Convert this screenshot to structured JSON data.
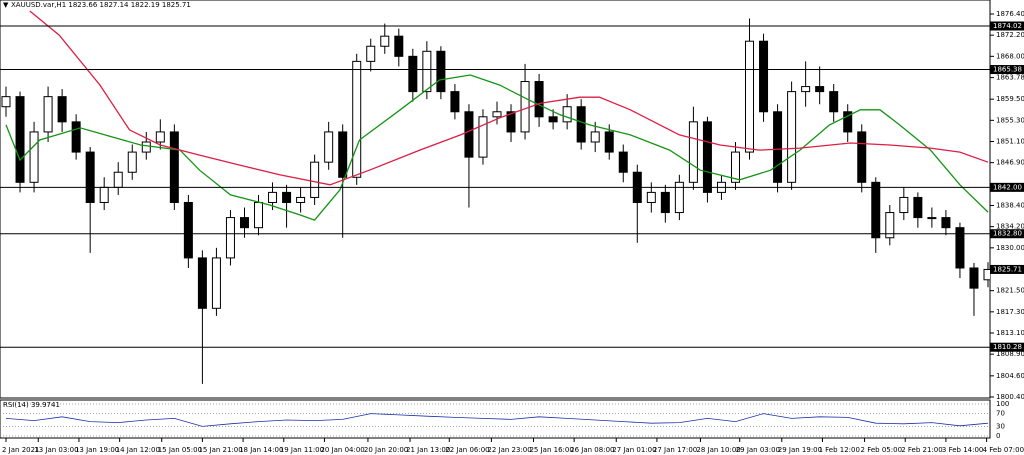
{
  "chart_data": {
    "type": "candlestick",
    "title": "XAUUSD.var,H1 1823.66 1827.14 1822.19 1825.71",
    "open": [
      1858,
      1860,
      1843,
      1853,
      1860,
      1855,
      1849,
      1839,
      1842,
      1845,
      1849,
      1851,
      1853,
      1839,
      1828,
      1818,
      1828,
      1836,
      1834,
      1839,
      1841,
      1839,
      1840,
      1847,
      1853,
      1844,
      1867,
      1870,
      1872,
      1868,
      1861,
      1869,
      1861,
      1857,
      1848,
      1856,
      1857,
      1853,
      1863,
      1856,
      1855,
      1858,
      1851,
      1853,
      1849,
      1845,
      1839,
      1841,
      1837,
      1843,
      1855,
      1841,
      1843,
      1849,
      1871,
      1857,
      1843,
      1861,
      1862,
      1861,
      1857,
      1853,
      1843,
      1832,
      1837,
      1840,
      1836,
      1836,
      1834,
      1826,
      1823.66
    ],
    "high": [
      1862,
      1861,
      1855,
      1862,
      1861.5,
      1856.5,
      1850,
      1844,
      1847,
      1850.5,
      1853,
      1855.5,
      1854.5,
      1840.5,
      1829.5,
      1830,
      1837.5,
      1838,
      1840.5,
      1843,
      1842.5,
      1842,
      1848.5,
      1855,
      1854.5,
      1868.5,
      1871.5,
      1874.5,
      1873.5,
      1869.5,
      1871,
      1870,
      1862.5,
      1858.5,
      1857.5,
      1859,
      1858.5,
      1866.5,
      1864.5,
      1857.5,
      1860.5,
      1859.5,
      1855,
      1854.5,
      1850.5,
      1846.5,
      1843,
      1842.5,
      1844.5,
      1858,
      1856,
      1844.5,
      1851,
      1875.5,
      1872.5,
      1858.5,
      1863,
      1867,
      1866,
      1862.5,
      1858.5,
      1854.5,
      1844,
      1838.5,
      1842,
      1841,
      1838,
      1837.5,
      1835,
      1827,
      1827.14
    ],
    "low": [
      1856,
      1841,
      1841,
      1851,
      1853,
      1847.5,
      1829,
      1837.5,
      1840.5,
      1843.5,
      1847.5,
      1849.5,
      1837.5,
      1826,
      1803,
      1816.5,
      1826.5,
      1832,
      1832.5,
      1837.5,
      1834,
      1837,
      1838.5,
      1845.5,
      1832,
      1842.5,
      1865,
      1868.5,
      1866,
      1859,
      1859.5,
      1859.5,
      1855.5,
      1838,
      1846.5,
      1854.5,
      1851,
      1851.5,
      1854,
      1853.5,
      1853.5,
      1849.5,
      1849,
      1847.5,
      1843,
      1831,
      1837,
      1835,
      1835.5,
      1841.5,
      1839,
      1839.5,
      1841.5,
      1847.5,
      1855,
      1841,
      1841.5,
      1858,
      1858.5,
      1855,
      1851,
      1841,
      1829,
      1830.5,
      1835.5,
      1834,
      1834,
      1832.5,
      1824,
      1816.5,
      1822.19
    ],
    "close": [
      1860,
      1843,
      1853,
      1860,
      1855,
      1849,
      1839,
      1842,
      1845,
      1849,
      1851,
      1853,
      1839,
      1828,
      1818,
      1828,
      1836,
      1834,
      1839,
      1841,
      1839,
      1840,
      1847,
      1853,
      1844,
      1867,
      1870,
      1872,
      1868,
      1861,
      1869,
      1861,
      1857,
      1848,
      1856,
      1857,
      1853,
      1863,
      1856,
      1855,
      1858,
      1851,
      1853,
      1849,
      1845,
      1839,
      1841,
      1837,
      1843,
      1855,
      1841,
      1843,
      1849,
      1871,
      1857,
      1843,
      1861,
      1862,
      1861,
      1857,
      1853,
      1843,
      1832,
      1837,
      1840,
      1836,
      1836,
      1834,
      1826,
      1822,
      1825.71
    ],
    "xlim": [
      0,
      70
    ],
    "ylim": [
      1800.4,
      1876.4
    ],
    "yticks": [
      {
        "value": 1876.4,
        "label": "1876.40"
      },
      {
        "value": 1872.2,
        "label": "1872.20"
      },
      {
        "value": 1868,
        "label": "1868.00"
      },
      1863.78,
      {
        "value": 1859.5,
        "label": "1859.50"
      },
      {
        "value": 1855.3,
        "label": "1855.30"
      },
      {
        "value": 1851.1,
        "label": "1851.10"
      },
      {
        "value": 1846.9,
        "label": "1846.90"
      },
      {
        "value": 1838.4,
        "label": "1838.40"
      },
      {
        "value": 1834.2,
        "label": "1834.20"
      },
      {
        "value": 1830,
        "label": "1830.00"
      },
      {
        "value": 1821.5,
        "label": "1821.50"
      },
      {
        "value": 1817.3,
        "label": "1817.30"
      },
      {
        "value": 1813.1,
        "label": "1813.10"
      },
      {
        "value": 1808.9,
        "label": "1808.90"
      },
      {
        "value": 1804.6,
        "label": "1804.60"
      },
      {
        "value": 1800.4,
        "label": "1800.40"
      }
    ],
    "levels": [
      1874.02,
      1865.38,
      {
        "value": 1842,
        "label": "1842.00"
      },
      {
        "value": 1832.8,
        "label": "1832.80"
      },
      1810.28
    ],
    "xticks": [
      {
        "value": 0,
        "label": "2 Jan 2021"
      },
      {
        "value": 2.3,
        "label": "13 Jan 03:00"
      },
      {
        "value": 5.2,
        "label": "13 Jan 19:00"
      },
      {
        "value": 8.1,
        "label": "14 Jan 12:00"
      },
      {
        "value": 11.1,
        "label": "15 Jan 05:00"
      },
      {
        "value": 14,
        "label": "15 Jan 21:00"
      },
      {
        "value": 16.9,
        "label": "18 Jan 14:00"
      },
      {
        "value": 19.8,
        "label": "19 Jan 11:00"
      },
      {
        "value": 22.7,
        "label": "20 Jan 04:00"
      },
      {
        "value": 25.8,
        "label": "20 Jan 20:00"
      },
      {
        "value": 28.8,
        "label": "21 Jan 13:00"
      },
      {
        "value": 31.6,
        "label": "22 Jan 06:00"
      },
      {
        "value": 34.6,
        "label": "22 Jan 23:00"
      },
      {
        "value": 37.6,
        "label": "25 Jan 16:00"
      },
      {
        "value": 40.5,
        "label": "26 Jan 08:00"
      },
      {
        "value": 43.5,
        "label": "27 Jan 01:00"
      },
      {
        "value": 46.4,
        "label": "27 Jan 17:00"
      },
      {
        "value": 49.5,
        "label": "28 Jan 10:00"
      },
      {
        "value": 52.3,
        "label": "29 Jan 03:00"
      },
      {
        "value": 55.3,
        "label": "29 Jan 19:00"
      },
      {
        "value": 58.2,
        "label": "1 Feb 12:00"
      },
      {
        "value": 61.2,
        "label": "2 Feb 05:00"
      },
      {
        "value": 64.1,
        "label": "2 Feb 21:00"
      },
      {
        "value": 67,
        "label": "3 Feb 14:00"
      },
      {
        "value": 69.9,
        "label": "4 Feb 07:00"
      }
    ],
    "overlays": [
      {
        "color": "#149414",
        "x": [
          0,
          1,
          2.4,
          5.3,
          9.6,
          12.4,
          13.8,
          16,
          18.8,
          21,
          22,
          23.8,
          25.2,
          28.1,
          30.9,
          33.1,
          35.2,
          37.3,
          39.5,
          41.6,
          44.5,
          47.3,
          49.5,
          52.3,
          54.5,
          56.6,
          58.7,
          60.9,
          62.3,
          63.7,
          65.9,
          68,
          70
        ],
        "values": [
          1854.4,
          1847.4,
          1851.4,
          1853.8,
          1850.4,
          1849.4,
          1845.4,
          1840.5,
          1838.5,
          1836.5,
          1835.5,
          1841.5,
          1851.4,
          1857.4,
          1863.3,
          1864.3,
          1862.3,
          1859.3,
          1856.4,
          1854.4,
          1852.4,
          1849.4,
          1845.4,
          1843.5,
          1845.4,
          1849.4,
          1854.4,
          1857.4,
          1857.4,
          1854.4,
          1849.4,
          1842.5,
          1837.1
        ]
      },
      {
        "color": "#dc1e44",
        "x": [
          1.7,
          3.8,
          6.7,
          8.8,
          11,
          13.8,
          16.7,
          19.5,
          23.1,
          25.9,
          29.5,
          32.4,
          35.2,
          38.1,
          40.9,
          42.3,
          44.5,
          48,
          50.9,
          53.7,
          56.6,
          60.2,
          63,
          65.9,
          68,
          70
        ],
        "values": [
          1877,
          1872.2,
          1862.3,
          1853.4,
          1850.4,
          1848.4,
          1846.4,
          1844.5,
          1842.5,
          1845.4,
          1849.4,
          1852.4,
          1855.8,
          1858.7,
          1859.9,
          1859.9,
          1857.4,
          1852.4,
          1850.4,
          1849.4,
          1849.8,
          1850.8,
          1850.4,
          1849.8,
          1849,
          1847
        ]
      }
    ],
    "indicator": {
      "type": "line",
      "label": "RSI(14) 39.9741",
      "color": "#1a2ea8",
      "ylim": [
        0,
        100
      ],
      "yticks": [
        100,
        70,
        30,
        0
      ],
      "x": [
        0,
        2,
        4,
        6,
        8,
        10,
        12,
        14,
        16,
        18,
        20,
        22,
        24,
        26,
        28,
        30,
        32,
        34,
        36,
        38,
        40,
        42,
        44,
        46,
        48,
        50,
        52,
        54,
        56,
        58,
        60,
        62,
        64,
        66,
        68,
        70
      ],
      "values": [
        55,
        48,
        60,
        45,
        42,
        50,
        55,
        30,
        38,
        45,
        50,
        48,
        52,
        70,
        66,
        62,
        58,
        55,
        52,
        60,
        55,
        50,
        45,
        40,
        42,
        55,
        45,
        70,
        55,
        60,
        58,
        40,
        38,
        42,
        32,
        39.9741
      ]
    }
  }
}
